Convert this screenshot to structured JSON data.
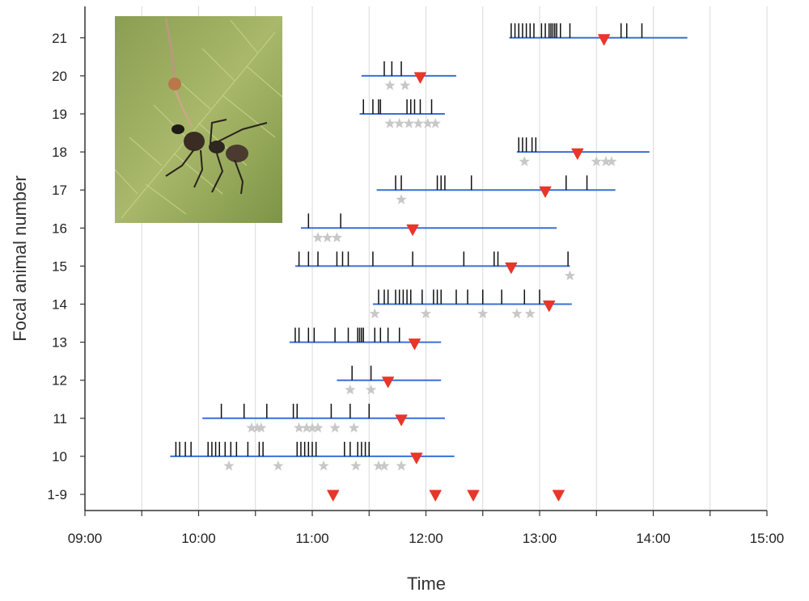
{
  "chart_data": {
    "type": "scatter",
    "xlabel": "Time",
    "ylabel": "Focal animal number",
    "x_ticks": [
      "09:00",
      "10:00",
      "11:00",
      "12:00",
      "13:00",
      "14:00",
      "15:00"
    ],
    "xlim": [
      "09:00",
      "15:00"
    ],
    "categories": [
      "1-9",
      "10",
      "11",
      "12",
      "13",
      "14",
      "15",
      "16",
      "17",
      "18",
      "19",
      "20",
      "21"
    ],
    "grid": "vertical",
    "colors": {
      "line": "#3a6fd8",
      "tick": "#111111",
      "star": "#c8c8c8",
      "triangle": "#e8362a",
      "axis": "#333333",
      "grid": "#d9d9d9"
    },
    "series": [
      {
        "category": "10",
        "line": [
          "09:45",
          "12:15"
        ],
        "ticks": [
          "09:48",
          "09:50",
          "09:53",
          "09:56",
          "10:05",
          "10:07",
          "10:09",
          "10:11",
          "10:14",
          "10:17",
          "10:20",
          "10:26",
          "10:32",
          "10:34",
          "10:52",
          "10:54",
          "10:56",
          "10:58",
          "11:00",
          "11:02",
          "11:17",
          "11:20",
          "11:24",
          "11:26",
          "11:28",
          "11:30"
        ],
        "stars": [
          "10:16",
          "10:42",
          "11:06",
          "11:23",
          "11:35",
          "11:38",
          "11:47"
        ],
        "triangle": "11:55"
      },
      {
        "category": "11",
        "line": [
          "10:02",
          "12:10"
        ],
        "ticks": [
          "10:12",
          "10:24",
          "10:36",
          "10:50",
          "10:52",
          "11:10",
          "11:20",
          "11:30"
        ],
        "stars": [
          "10:28",
          "10:31",
          "10:33",
          "10:53",
          "10:57",
          "11:00",
          "11:03",
          "11:12",
          "11:22"
        ],
        "triangle": "11:47"
      },
      {
        "category": "12",
        "line": [
          "11:13",
          "12:08"
        ],
        "ticks": [
          "11:21",
          "11:31"
        ],
        "stars": [
          "11:20",
          "11:31"
        ],
        "triangle": "11:40"
      },
      {
        "category": "13",
        "line": [
          "10:48",
          "12:08"
        ],
        "ticks": [
          "10:51",
          "10:53",
          "10:58",
          "11:01",
          "11:12",
          "11:19",
          "11:24",
          "11:25",
          "11:26",
          "11:27",
          "11:33",
          "11:36",
          "11:40",
          "11:46"
        ],
        "stars": [],
        "triangle": "11:54"
      },
      {
        "category": "14",
        "line": [
          "11:32",
          "13:17"
        ],
        "ticks": [
          "11:35",
          "11:38",
          "11:40",
          "11:44",
          "11:46",
          "11:48",
          "11:50",
          "11:52",
          "11:58",
          "12:04",
          "12:06",
          "12:08",
          "12:16",
          "12:22",
          "12:30",
          "12:40",
          "12:52",
          "13:00"
        ],
        "stars": [
          "11:33",
          "12:00",
          "12:30",
          "12:48",
          "12:55"
        ],
        "triangle": "13:05"
      },
      {
        "category": "15",
        "line": [
          "10:51",
          "13:16"
        ],
        "ticks": [
          "10:53",
          "10:58",
          "11:03",
          "11:13",
          "11:16",
          "11:19",
          "11:32",
          "11:53",
          "12:20",
          "12:36",
          "12:38",
          "13:15"
        ],
        "stars": [
          "13:16"
        ],
        "triangle": "12:45"
      },
      {
        "category": "16",
        "line": [
          "10:54",
          "13:09"
        ],
        "ticks": [
          "10:58",
          "11:15"
        ],
        "stars": [
          "11:03",
          "11:08",
          "11:13"
        ],
        "triangle": "11:53"
      },
      {
        "category": "17",
        "line": [
          "11:34",
          "13:40"
        ],
        "ticks": [
          "11:44",
          "11:47",
          "12:06",
          "12:08",
          "12:10",
          "12:24",
          "13:14",
          "13:25"
        ],
        "stars": [
          "11:47"
        ],
        "triangle": "13:03"
      },
      {
        "category": "18",
        "line": [
          "12:48",
          "13:58"
        ],
        "ticks": [
          "12:49",
          "12:51",
          "12:53",
          "12:56",
          "12:58"
        ],
        "stars": [
          "12:52",
          "13:30",
          "13:35",
          "13:38"
        ],
        "triangle": "13:20"
      },
      {
        "category": "19",
        "line": [
          "11:25",
          "12:10"
        ],
        "ticks": [
          "11:27",
          "11:32",
          "11:35",
          "11:36",
          "11:50",
          "11:52",
          "11:54",
          "11:57",
          "12:03"
        ],
        "stars": [
          "11:41",
          "11:46",
          "11:51",
          "11:56",
          "12:01",
          "12:05"
        ],
        "triangle": null
      },
      {
        "category": "20",
        "line": [
          "11:26",
          "12:16"
        ],
        "ticks": [
          "11:38",
          "11:42",
          "11:47"
        ],
        "stars": [
          "11:41",
          "11:49"
        ],
        "triangle": "11:57"
      },
      {
        "category": "21",
        "line": [
          "12:44",
          "14:18"
        ],
        "ticks": [
          "12:45",
          "12:47",
          "12:49",
          "12:51",
          "12:53",
          "12:55",
          "12:57",
          "13:01",
          "13:03",
          "13:05",
          "13:06",
          "13:07",
          "13:08",
          "13:09",
          "13:11",
          "13:16",
          "13:43",
          "13:46",
          "13:54"
        ],
        "stars": [],
        "triangle": "13:34"
      },
      {
        "category": "1-9",
        "line": null,
        "ticks": [],
        "stars": [],
        "triangles": [
          "11:11",
          "12:05",
          "12:25",
          "13:10"
        ]
      }
    ]
  },
  "inset_photo": {
    "subject": "ant-with-fungal-stalk-photo"
  }
}
